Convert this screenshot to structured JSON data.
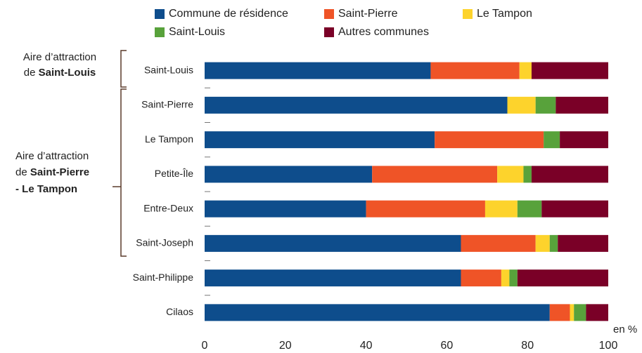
{
  "chart_data": {
    "type": "bar",
    "orientation": "horizontal",
    "stacked": true,
    "categories": [
      "Saint-Louis",
      "Saint-Pierre",
      "Le Tampon",
      "Petite-Île",
      "Entre-Deux",
      "Saint-Joseph",
      "Saint-Philippe",
      "Cilaos"
    ],
    "series": [
      {
        "name": "Commune de résidence",
        "color": "#0e4d8c",
        "values": [
          56,
          75,
          57,
          41.5,
          40,
          63.5,
          63.5,
          85.5
        ]
      },
      {
        "name": "Saint-Pierre",
        "color": "#ef5427",
        "values": [
          22,
          0,
          27,
          31,
          29.5,
          18.5,
          10,
          5
        ]
      },
      {
        "name": "Le Tampon",
        "color": "#fdd32c",
        "values": [
          3,
          7,
          0,
          6.5,
          8,
          3.5,
          2,
          1
        ]
      },
      {
        "name": "Saint-Louis",
        "color": "#58a23b",
        "values": [
          0,
          5,
          4,
          2,
          6,
          2,
          2,
          3
        ]
      },
      {
        "name": "Autres communes",
        "color": "#7a0027",
        "values": [
          19,
          13,
          12,
          19,
          16.5,
          12.5,
          22.5,
          5.5
        ]
      }
    ],
    "xlim": [
      0,
      100
    ],
    "xticks": [
      0,
      20,
      40,
      60,
      80,
      100
    ],
    "xlabel": "en %",
    "groups": [
      {
        "line1": "Aire d’attraction",
        "line2_prefix": "de ",
        "line2_bold": "Saint-Louis"
      },
      {
        "line1": "Aire d’attraction",
        "line2_prefix": "de ",
        "line2_bold": "Saint-Pierre",
        "line3_bold": "- Le Tampon"
      }
    ]
  }
}
